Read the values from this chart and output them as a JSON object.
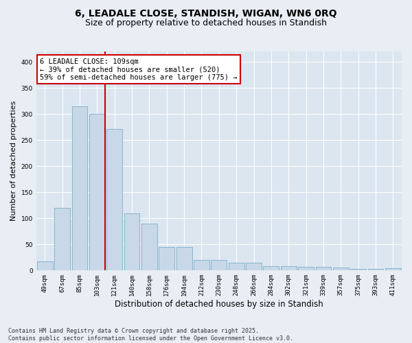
{
  "title_line1": "6, LEADALE CLOSE, STANDISH, WIGAN, WN6 0RQ",
  "title_line2": "Size of property relative to detached houses in Standish",
  "xlabel": "Distribution of detached houses by size in Standish",
  "ylabel": "Number of detached properties",
  "categories": [
    "49sqm",
    "67sqm",
    "85sqm",
    "103sqm",
    "121sqm",
    "140sqm",
    "158sqm",
    "176sqm",
    "194sqm",
    "212sqm",
    "230sqm",
    "248sqm",
    "266sqm",
    "284sqm",
    "302sqm",
    "321sqm",
    "339sqm",
    "357sqm",
    "375sqm",
    "393sqm",
    "411sqm"
  ],
  "values": [
    18,
    120,
    315,
    300,
    272,
    110,
    90,
    45,
    45,
    20,
    20,
    15,
    15,
    8,
    8,
    7,
    7,
    6,
    3,
    3,
    5
  ],
  "bar_color": "#c8d8e8",
  "bar_edgecolor": "#7aafc8",
  "vline_x_idx": 3,
  "vline_color": "#cc0000",
  "annotation_text": "6 LEADALE CLOSE: 109sqm\n← 39% of detached houses are smaller (520)\n59% of semi-detached houses are larger (775) →",
  "annotation_box_color": "white",
  "annotation_box_edgecolor": "#cc0000",
  "annotation_fontsize": 7.5,
  "footer_text": "Contains HM Land Registry data © Crown copyright and database right 2025.\nContains public sector information licensed under the Open Government Licence v3.0.",
  "background_color": "#e8eef4",
  "plot_bg_color": "#dce6f0",
  "grid_color": "white",
  "ylim": [
    0,
    420
  ],
  "title_fontsize": 10,
  "subtitle_fontsize": 9,
  "xlabel_fontsize": 8.5,
  "ylabel_fontsize": 8,
  "tick_fontsize": 6.5,
  "footer_fontsize": 6
}
